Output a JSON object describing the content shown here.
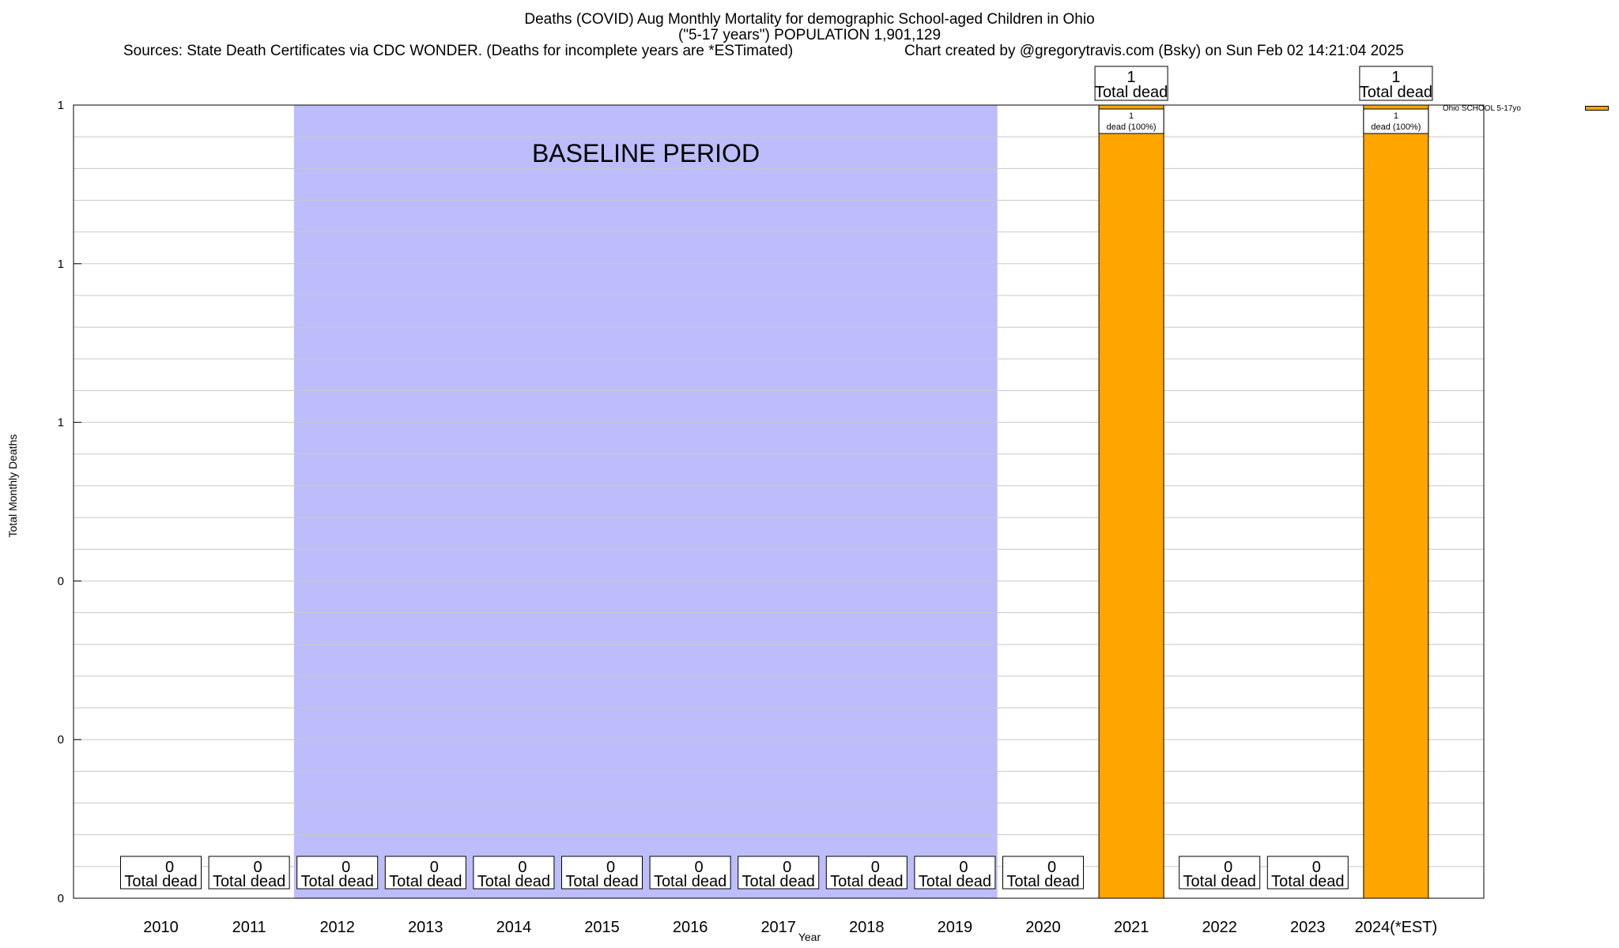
{
  "header": {
    "title_line1": "Deaths (COVID) Aug Monthly Mortality for demographic School-aged Children in Ohio",
    "title_line2": "(\"5-17 years\") POPULATION 1,901,129",
    "sources": "Sources: State Death Certificates via CDC WONDER. (Deaths for incomplete years are *ESTimated)",
    "credit": "Chart created by @gregorytravis.com (Bsky) on Sun Feb 02 14:21:04 2025"
  },
  "chart_data": {
    "type": "bar",
    "title": "Deaths (COVID) Aug Monthly Mortality for demographic School-aged Children in Ohio",
    "subtitle": "(\"5-17 years\") POPULATION 1,901,129",
    "xlabel": "Year",
    "ylabel": "Total Monthly Deaths",
    "categories": [
      "2010",
      "2011",
      "2012",
      "2013",
      "2014",
      "2015",
      "2016",
      "2017",
      "2018",
      "2019",
      "2020",
      "2021",
      "2022",
      "2023",
      "2024(*EST)"
    ],
    "series": [
      {
        "name": "Ohio SCHOOL 5-17yo",
        "color": "#ffa500",
        "values": [
          0,
          0,
          0,
          0,
          0,
          0,
          0,
          0,
          0,
          0,
          0,
          1,
          0,
          0,
          1
        ]
      }
    ],
    "ylim": [
      0,
      1
    ],
    "y_tick_labels": [
      "0",
      "0",
      "0",
      "1",
      "1",
      "1"
    ],
    "grid": true,
    "legend_position": "top-right",
    "total_label_suffix": "Total dead",
    "segment_labels": [
      {
        "category": "2021",
        "count": "1",
        "text": "dead (100%)"
      },
      {
        "category": "2024(*EST)",
        "count": "1",
        "text": "dead (100%)"
      }
    ],
    "baseline_period": {
      "label": "BASELINE PERIOD",
      "from": "2012",
      "to": "2019",
      "color": "#bdbdfc"
    }
  }
}
